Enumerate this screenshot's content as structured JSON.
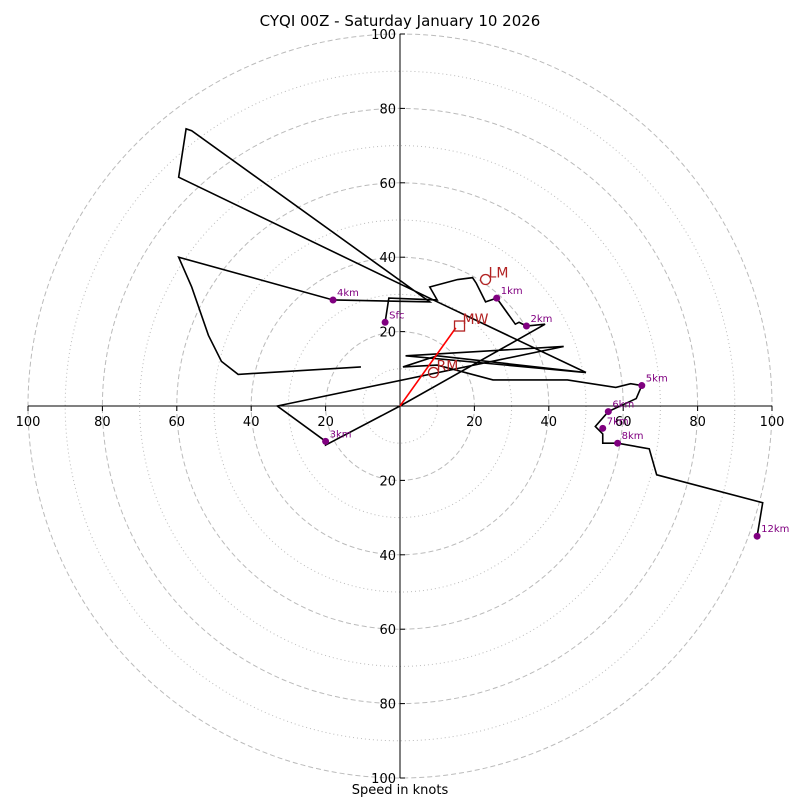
{
  "chart_data": {
    "type": "line",
    "subtype": "hodograph",
    "title": "CYQI 00Z - Saturday January 10 2026",
    "xlabel": "Speed in knots",
    "ylabel": "",
    "rlim": [
      0,
      100
    ],
    "ring_major": [
      20,
      40,
      60,
      80,
      100
    ],
    "ring_minor": [
      10,
      30,
      50,
      70,
      90
    ],
    "tick_labels": [
      "20",
      "40",
      "60",
      "80",
      "100"
    ],
    "grid": true,
    "hodograph": {
      "u": [
        -4,
        -3,
        10,
        8,
        15.5,
        19.5,
        20.5,
        23,
        26,
        31,
        32,
        34,
        39,
        35.5,
        0,
        -20,
        -20,
        -33,
        44,
        1.5,
        50,
        10,
        0.8,
        10,
        25,
        45,
        58,
        62,
        65,
        63.5,
        56,
        52.5,
        54.5,
        54.5,
        58.5,
        67,
        69,
        97.5,
        96
      ],
      "v": [
        22.5,
        29,
        28.5,
        32,
        34,
        34.5,
        33,
        28,
        29,
        22,
        22.5,
        21.5,
        22,
        20,
        0,
        -10.5,
        -9.5,
        0,
        16,
        13.5,
        9,
        13.5,
        10.5,
        11,
        7,
        7,
        5,
        6,
        5.5,
        2,
        -1.5,
        -5.5,
        -7.5,
        -10,
        -10,
        -11.5,
        -18.5,
        -26,
        -35
      ]
    },
    "path_far": {
      "u": [
        -10.5,
        -43.5,
        -48,
        -51.5,
        -56,
        -59.5,
        -18,
        8,
        -56,
        -57.5,
        -59.5,
        10,
        50
      ],
      "v": [
        10.5,
        8.5,
        12,
        19,
        32,
        40,
        28.5,
        28,
        74,
        74.5,
        61.5,
        28,
        9
      ]
    },
    "height_labels": [
      {
        "label": "Sfc",
        "u": -4,
        "v": 22.5
      },
      {
        "label": "1km",
        "u": 26,
        "v": 29
      },
      {
        "label": "2km",
        "u": 34,
        "v": 21.5
      },
      {
        "label": "3km",
        "u": -20,
        "v": -9.5
      },
      {
        "label": "4km",
        "u": -18,
        "v": 28.5
      },
      {
        "label": "5km",
        "u": 65,
        "v": 5.5
      },
      {
        "label": "6km",
        "u": 56,
        "v": -1.5
      },
      {
        "label": "7km",
        "u": 54.5,
        "v": -6
      },
      {
        "label": "8km",
        "u": 58.5,
        "v": -10
      },
      {
        "label": "12km",
        "u": 96,
        "v": -35
      }
    ],
    "storm_motion": [
      {
        "label": "RM",
        "u": 9,
        "v": 9,
        "marker": "circle"
      },
      {
        "label": "LM",
        "u": 23,
        "v": 34,
        "marker": "circle"
      },
      {
        "label": "MW",
        "u": 16,
        "v": 21.5,
        "marker": "square"
      }
    ],
    "mean_wind_vector": {
      "u": 15,
      "v": 21
    },
    "colors": {
      "hodograph": "#000000",
      "heights": "#800080",
      "storm": "#b22222",
      "vector": "#ff0000",
      "grid": "#bbbbbb"
    }
  }
}
